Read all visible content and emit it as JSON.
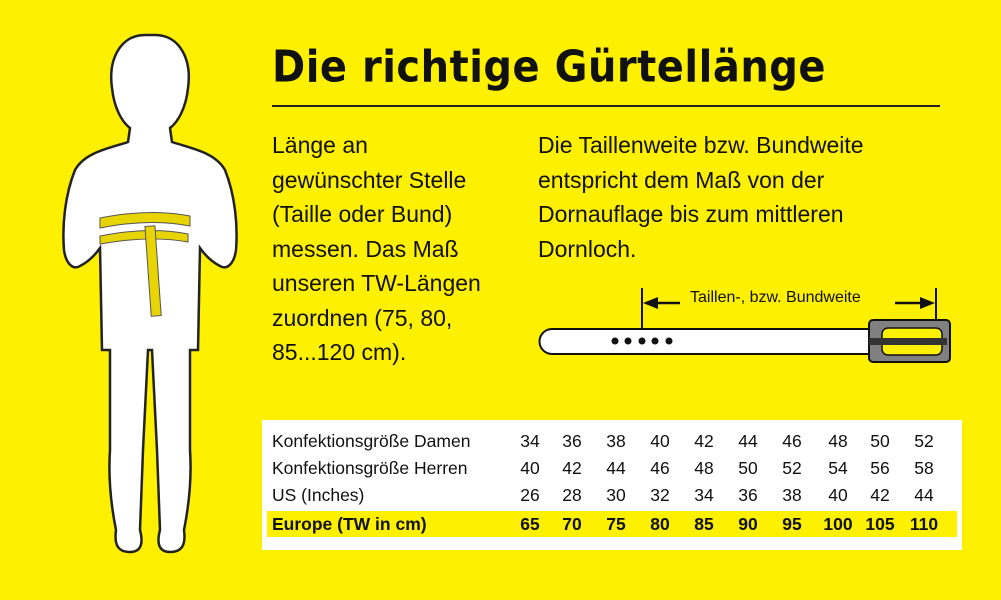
{
  "title": "Die richtige Gürtellänge",
  "left_text": [
    "Länge an",
    "gewünschter Stelle",
    "(Taille oder Bund)",
    "messen. Das Maß",
    "unseren TW-Längen",
    "zuordnen (75, 80,",
    "85...120 cm)."
  ],
  "right_text": [
    "Die Taillenweite bzw. Bundweite",
    "entspricht dem Maß von der",
    "Dornauflage bis zum mittleren",
    "Dornloch."
  ],
  "belt_label": "Taillen-, bzw. Bundweite",
  "colors": {
    "background": "#fdf001",
    "highlight": "#fdf001",
    "buckle": "#808080"
  },
  "table": {
    "rows": [
      {
        "label": "Konfektionsgröße Damen",
        "values": [
          "34",
          "36",
          "38",
          "40",
          "42",
          "44",
          "46",
          "48",
          "50",
          "52"
        ]
      },
      {
        "label": "Konfektionsgröße Herren",
        "values": [
          "40",
          "42",
          "44",
          "46",
          "48",
          "50",
          "52",
          "54",
          "56",
          "58"
        ]
      },
      {
        "label": "US (Inches)",
        "values": [
          "26",
          "28",
          "30",
          "32",
          "34",
          "36",
          "38",
          "40",
          "42",
          "44"
        ]
      },
      {
        "label": "Europe (TW in cm)",
        "values": [
          "65",
          "70",
          "75",
          "80",
          "85",
          "90",
          "95",
          "100",
          "105",
          "110"
        ],
        "highlighted": true
      }
    ]
  }
}
